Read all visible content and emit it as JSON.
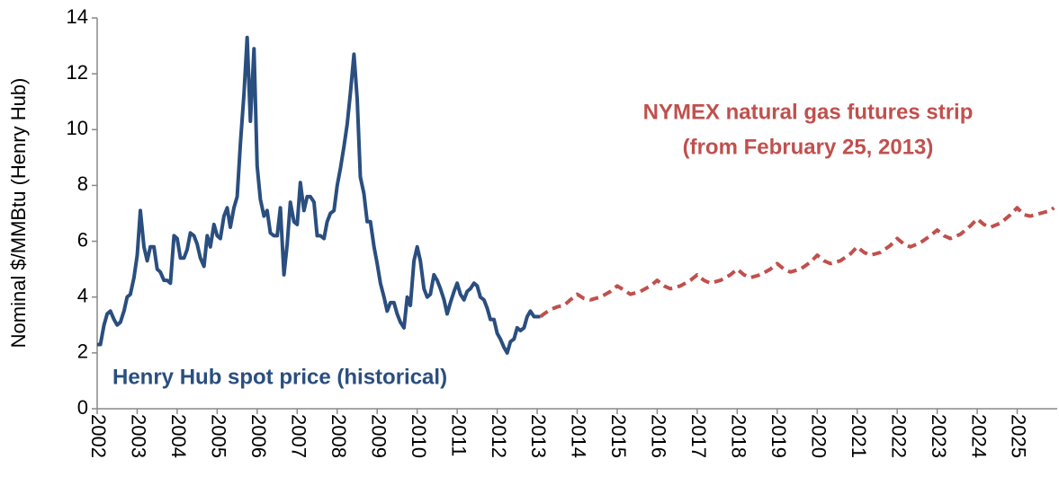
{
  "chart_data": {
    "type": "line",
    "y_label": "Nominal $/MMBtu (Henry Hub)",
    "xlim": [
      2002,
      2026
    ],
    "xticks": [
      2002,
      2003,
      2004,
      2005,
      2006,
      2007,
      2008,
      2009,
      2010,
      2011,
      2012,
      2013,
      2014,
      2015,
      2016,
      2017,
      2018,
      2019,
      2020,
      2021,
      2022,
      2023,
      2024,
      2025
    ],
    "ylim": [
      0,
      14
    ],
    "yticks": [
      0,
      2,
      4,
      6,
      8,
      10,
      12,
      14
    ],
    "grid": false,
    "annotations": [
      "(from February 25, 2013)"
    ],
    "series": [
      {
        "name": "Henry Hub spot price (historical)",
        "color": "#2a4e7f",
        "dashed": false,
        "x": [
          2002.0,
          2002.08,
          2002.17,
          2002.25,
          2002.33,
          2002.42,
          2002.5,
          2002.58,
          2002.67,
          2002.75,
          2002.83,
          2002.92,
          2003.0,
          2003.08,
          2003.17,
          2003.25,
          2003.33,
          2003.42,
          2003.5,
          2003.58,
          2003.67,
          2003.75,
          2003.83,
          2003.92,
          2004.0,
          2004.08,
          2004.17,
          2004.25,
          2004.33,
          2004.42,
          2004.5,
          2004.58,
          2004.67,
          2004.75,
          2004.83,
          2004.92,
          2005.0,
          2005.08,
          2005.17,
          2005.25,
          2005.33,
          2005.42,
          2005.5,
          2005.58,
          2005.67,
          2005.75,
          2005.83,
          2005.92,
          2006.0,
          2006.08,
          2006.17,
          2006.25,
          2006.33,
          2006.42,
          2006.5,
          2006.58,
          2006.67,
          2006.75,
          2006.83,
          2006.92,
          2007.0,
          2007.08,
          2007.17,
          2007.25,
          2007.33,
          2007.42,
          2007.5,
          2007.58,
          2007.67,
          2007.75,
          2007.83,
          2007.92,
          2008.0,
          2008.08,
          2008.17,
          2008.25,
          2008.33,
          2008.42,
          2008.5,
          2008.58,
          2008.67,
          2008.75,
          2008.83,
          2008.92,
          2009.0,
          2009.08,
          2009.17,
          2009.25,
          2009.33,
          2009.42,
          2009.5,
          2009.58,
          2009.67,
          2009.75,
          2009.83,
          2009.92,
          2010.0,
          2010.08,
          2010.17,
          2010.25,
          2010.33,
          2010.42,
          2010.5,
          2010.58,
          2010.67,
          2010.75,
          2010.83,
          2010.92,
          2011.0,
          2011.08,
          2011.17,
          2011.25,
          2011.33,
          2011.42,
          2011.5,
          2011.58,
          2011.67,
          2011.75,
          2011.83,
          2011.92,
          2012.0,
          2012.08,
          2012.17,
          2012.25,
          2012.33,
          2012.42,
          2012.5,
          2012.58,
          2012.67,
          2012.75,
          2012.83,
          2012.92,
          2013.0,
          2013.08
        ],
        "values": [
          2.3,
          2.3,
          3.0,
          3.4,
          3.5,
          3.2,
          3.0,
          3.1,
          3.5,
          4.0,
          4.1,
          4.7,
          5.5,
          7.1,
          5.8,
          5.3,
          5.8,
          5.8,
          5.0,
          4.9,
          4.6,
          4.6,
          4.5,
          6.2,
          6.1,
          5.4,
          5.4,
          5.7,
          6.3,
          6.2,
          5.9,
          5.4,
          5.1,
          6.2,
          5.8,
          6.6,
          6.2,
          6.1,
          6.9,
          7.2,
          6.5,
          7.2,
          7.6,
          9.5,
          11.3,
          13.3,
          10.3,
          12.9,
          8.7,
          7.5,
          6.9,
          7.1,
          6.3,
          6.2,
          6.2,
          7.2,
          4.8,
          5.9,
          7.4,
          6.7,
          6.6,
          8.1,
          7.1,
          7.6,
          7.6,
          7.4,
          6.2,
          6.2,
          6.1,
          6.7,
          7.0,
          7.1,
          8.0,
          8.6,
          9.4,
          10.2,
          11.3,
          12.7,
          11.1,
          8.3,
          7.7,
          6.7,
          6.7,
          5.8,
          5.2,
          4.5,
          4.0,
          3.5,
          3.8,
          3.8,
          3.4,
          3.1,
          2.9,
          4.0,
          3.7,
          5.3,
          5.8,
          5.3,
          4.3,
          4.0,
          4.1,
          4.8,
          4.6,
          4.3,
          3.9,
          3.4,
          3.8,
          4.2,
          4.5,
          4.1,
          3.9,
          4.2,
          4.3,
          4.5,
          4.4,
          4.0,
          3.9,
          3.6,
          3.2,
          3.2,
          2.7,
          2.5,
          2.2,
          2.0,
          2.4,
          2.5,
          2.9,
          2.8,
          2.9,
          3.3,
          3.5,
          3.3,
          3.3,
          3.3
        ]
      },
      {
        "name": "NYMEX natural gas futures strip",
        "color": "#c0504d",
        "dashed": true,
        "x": [
          2013.08,
          2013.17,
          2013.33,
          2013.5,
          2013.67,
          2013.83,
          2014.0,
          2014.17,
          2014.33,
          2014.58,
          2014.83,
          2015.0,
          2015.17,
          2015.33,
          2015.58,
          2015.83,
          2016.0,
          2016.17,
          2016.33,
          2016.58,
          2016.83,
          2017.0,
          2017.17,
          2017.33,
          2017.58,
          2017.83,
          2018.0,
          2018.17,
          2018.33,
          2018.58,
          2018.83,
          2019.0,
          2019.17,
          2019.33,
          2019.58,
          2019.83,
          2020.0,
          2020.17,
          2020.33,
          2020.58,
          2020.83,
          2021.0,
          2021.17,
          2021.33,
          2021.58,
          2021.83,
          2022.0,
          2022.17,
          2022.33,
          2022.58,
          2022.83,
          2023.0,
          2023.17,
          2023.33,
          2023.58,
          2023.83,
          2024.0,
          2024.17,
          2024.33,
          2024.58,
          2024.83,
          2025.0,
          2025.17,
          2025.33,
          2025.58,
          2025.83,
          2025.92
        ],
        "values": [
          3.3,
          3.4,
          3.55,
          3.65,
          3.7,
          3.9,
          4.1,
          3.95,
          3.9,
          4.0,
          4.2,
          4.4,
          4.25,
          4.1,
          4.2,
          4.4,
          4.6,
          4.4,
          4.3,
          4.4,
          4.6,
          4.8,
          4.6,
          4.5,
          4.6,
          4.8,
          5.0,
          4.8,
          4.7,
          4.8,
          5.0,
          5.2,
          5.0,
          4.9,
          5.0,
          5.25,
          5.5,
          5.3,
          5.2,
          5.3,
          5.55,
          5.8,
          5.6,
          5.5,
          5.6,
          5.85,
          6.1,
          5.9,
          5.8,
          5.95,
          6.2,
          6.4,
          6.2,
          6.1,
          6.25,
          6.55,
          6.8,
          6.6,
          6.5,
          6.65,
          6.95,
          7.2,
          6.95,
          6.9,
          7.0,
          7.1,
          7.2
        ]
      }
    ]
  }
}
